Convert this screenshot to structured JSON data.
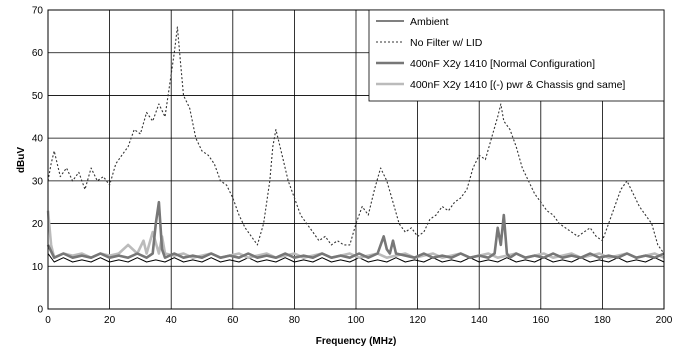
{
  "chart_data": {
    "type": "line",
    "title": "",
    "xlabel": "Frequency (MHz)",
    "ylabel": "dBuV",
    "xlim": [
      0,
      200
    ],
    "ylim": [
      0,
      70
    ],
    "xticks": [
      "0",
      "20",
      "40",
      "60",
      "80",
      "100",
      "120",
      "140",
      "160",
      "180",
      "200"
    ],
    "yticks": [
      "0",
      "10",
      "20",
      "30",
      "40",
      "50",
      "60",
      "70"
    ],
    "grid": true,
    "legend": "top-right",
    "series": [
      {
        "name": "Ambient",
        "color": "#000000",
        "style": "solid-thin",
        "x": [
          0,
          2,
          5,
          8,
          11,
          14,
          17,
          20,
          23,
          26,
          29,
          32,
          35,
          38,
          41,
          44,
          47,
          50,
          53,
          56,
          59,
          62,
          65,
          68,
          71,
          74,
          77,
          80,
          83,
          86,
          89,
          92,
          95,
          98,
          101,
          104,
          107,
          110,
          113,
          116,
          119,
          122,
          125,
          128,
          131,
          134,
          137,
          140,
          143,
          146,
          149,
          152,
          155,
          158,
          161,
          164,
          167,
          170,
          173,
          176,
          179,
          182,
          185,
          188,
          191,
          194,
          197,
          200
        ],
        "values": [
          13,
          11,
          12,
          11,
          11.5,
          11,
          12,
          11,
          11.5,
          11,
          12,
          11,
          11.5,
          11,
          12,
          11,
          11.5,
          11,
          12,
          11,
          11.5,
          11,
          12,
          11,
          11.5,
          11,
          12,
          11,
          11.5,
          11,
          12,
          11,
          11.5,
          11,
          12,
          11,
          11.5,
          11,
          12,
          11,
          11.5,
          11,
          12,
          11,
          11.5,
          11,
          12,
          11,
          11.5,
          11,
          12,
          11,
          11.5,
          11,
          12,
          11,
          11.5,
          11,
          12,
          11,
          11.5,
          11,
          12,
          11,
          11.5,
          11,
          12,
          11
        ]
      },
      {
        "name": "No Filter w/ LID",
        "color": "#333333",
        "style": "dotted",
        "x": [
          0,
          1,
          2,
          4,
          6,
          8,
          10,
          12,
          14,
          16,
          18,
          20,
          22,
          24,
          26,
          28,
          30,
          32,
          34,
          36,
          38,
          40,
          41,
          42,
          43,
          44,
          46,
          48,
          50,
          52,
          54,
          56,
          58,
          60,
          62,
          64,
          66,
          68,
          70,
          72,
          73,
          74,
          76,
          78,
          80,
          82,
          84,
          86,
          88,
          90,
          92,
          94,
          96,
          98,
          100,
          102,
          104,
          106,
          108,
          110,
          112,
          114,
          116,
          118,
          120,
          122,
          124,
          126,
          128,
          130,
          132,
          134,
          136,
          138,
          140,
          142,
          144,
          146,
          147,
          148,
          150,
          152,
          154,
          156,
          158,
          160,
          162,
          164,
          166,
          168,
          170,
          172,
          174,
          176,
          178,
          180,
          182,
          184,
          186,
          188,
          190,
          192,
          194,
          196,
          198,
          200
        ],
        "values": [
          30,
          34,
          37,
          31,
          33,
          30,
          32,
          28,
          33,
          30,
          31,
          29,
          34,
          36,
          38,
          42,
          41,
          46,
          44,
          48,
          45,
          55,
          60,
          66,
          58,
          50,
          47,
          40,
          37,
          36,
          34,
          30,
          29,
          26,
          22,
          19,
          17,
          15,
          20,
          30,
          38,
          42,
          36,
          30,
          26,
          22,
          20,
          18,
          16,
          17,
          15,
          16,
          15,
          15,
          20,
          24,
          22,
          28,
          33,
          30,
          25,
          20,
          18,
          19,
          17,
          18,
          21,
          22,
          24,
          23,
          25,
          26,
          28,
          33,
          36,
          35,
          40,
          45,
          48,
          44,
          42,
          38,
          33,
          30,
          27,
          25,
          23,
          22,
          20,
          19,
          18,
          17,
          18,
          19,
          17,
          16,
          20,
          24,
          28,
          30,
          27,
          24,
          22,
          20,
          15,
          13
        ]
      },
      {
        "name": "400nF X2y 1410 [Normal Configuration]",
        "color": "#777777",
        "style": "solid-thick",
        "x": [
          0,
          2,
          5,
          8,
          11,
          14,
          17,
          20,
          23,
          26,
          29,
          32,
          34,
          35,
          36,
          37,
          38,
          41,
          44,
          47,
          50,
          53,
          56,
          59,
          62,
          65,
          68,
          71,
          74,
          77,
          80,
          83,
          86,
          89,
          92,
          95,
          98,
          101,
          104,
          107,
          109,
          110,
          111,
          112,
          113,
          116,
          119,
          122,
          125,
          128,
          131,
          134,
          137,
          140,
          143,
          145,
          146,
          147,
          148,
          149,
          150,
          152,
          155,
          158,
          161,
          164,
          167,
          170,
          173,
          176,
          179,
          182,
          185,
          188,
          191,
          194,
          197,
          200
        ],
        "values": [
          15,
          12,
          13,
          12,
          12.5,
          12,
          13,
          12,
          12.5,
          12,
          13,
          12,
          13,
          20,
          25,
          14,
          12,
          13,
          12,
          12.5,
          12,
          13,
          12,
          12.5,
          12,
          13,
          12,
          12.5,
          12,
          13,
          12,
          12.5,
          12,
          13,
          12,
          12.5,
          12,
          13,
          12,
          13,
          17,
          14,
          13,
          16,
          13,
          12.5,
          12,
          13,
          12,
          12.5,
          12,
          13,
          12,
          12.5,
          12,
          13,
          19,
          15,
          22,
          13,
          12,
          13,
          12,
          12.5,
          12,
          13,
          12,
          12.5,
          12,
          13,
          12,
          12.5,
          12,
          13,
          12,
          12.5,
          12,
          13
        ]
      },
      {
        "name": "400nF X2y 1410 [(-) pwr & Chassis gnd same]",
        "color": "#bbbbbb",
        "style": "solid-thick",
        "x": [
          0,
          1,
          2,
          5,
          8,
          11,
          14,
          17,
          20,
          23,
          26,
          29,
          31,
          32,
          34,
          36,
          37,
          38,
          41,
          44,
          47,
          50,
          53,
          56,
          59,
          62,
          65,
          68,
          71,
          74,
          77,
          80,
          83,
          86,
          89,
          92,
          95,
          98,
          101,
          104,
          107,
          110,
          113,
          116,
          119,
          122,
          125,
          128,
          131,
          134,
          137,
          140,
          143,
          146,
          149,
          152,
          155,
          158,
          161,
          164,
          167,
          170,
          173,
          176,
          179,
          182,
          185,
          188,
          191,
          194,
          197,
          200
        ],
        "values": [
          23,
          15,
          12,
          13,
          12.5,
          13,
          12,
          13,
          12.5,
          13,
          15,
          13,
          16,
          13,
          18,
          13,
          17,
          13,
          12.5,
          13,
          12,
          12.5,
          13,
          12,
          12.5,
          13,
          12,
          12.5,
          13,
          12,
          12.5,
          13,
          12,
          12.5,
          13,
          12,
          12.5,
          13,
          12,
          12.5,
          13,
          12,
          12.5,
          13,
          12,
          12.5,
          13,
          12,
          12.5,
          13,
          12,
          12.5,
          13,
          12,
          12.5,
          13,
          12,
          12.5,
          13,
          12,
          12.5,
          13,
          12,
          12.5,
          13,
          12,
          12.5,
          13,
          12,
          12.5,
          13,
          12
        ]
      }
    ]
  }
}
